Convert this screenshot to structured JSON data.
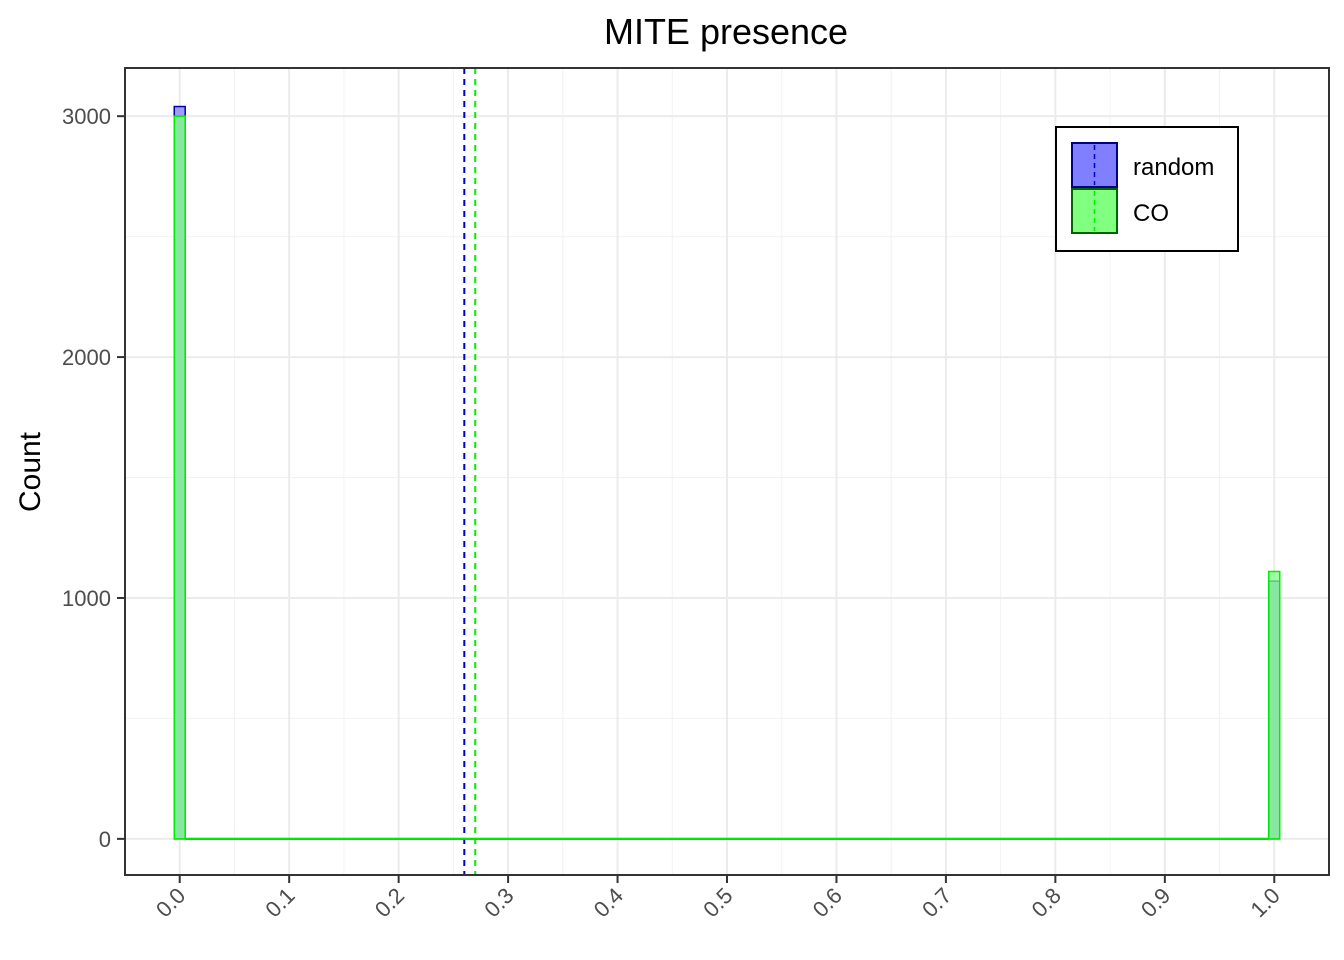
{
  "chart_data": {
    "type": "bar",
    "title": "MITE presence",
    "xlabel": "",
    "ylabel": "Count",
    "xlim": [
      -0.05,
      1.05
    ],
    "ylim": [
      -150,
      3200
    ],
    "x_ticks": [
      "0.0",
      "0.1",
      "0.2",
      "0.3",
      "0.4",
      "0.5",
      "0.6",
      "0.7",
      "0.8",
      "0.9",
      "1.0"
    ],
    "y_ticks": [
      "0",
      "1000",
      "2000",
      "3000"
    ],
    "grid": true,
    "legend_position": "top-right",
    "x": [
      0,
      1
    ],
    "series": [
      {
        "name": "random",
        "values": [
          3040,
          1070
        ],
        "mean": 0.26,
        "fill": "#7f7fff",
        "line": "#0000cc"
      },
      {
        "name": "CO",
        "values": [
          3000,
          1110
        ],
        "mean": 0.27,
        "fill": "#80ff80",
        "line": "#00ee00"
      }
    ]
  }
}
